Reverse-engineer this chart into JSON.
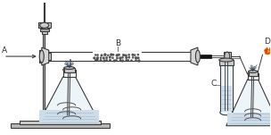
{
  "line_color": "#3a3a3a",
  "label_A": "A",
  "label_B": "B",
  "label_C": "C",
  "label_D": "D",
  "fig_width": 3.04,
  "fig_height": 1.51,
  "dpi": 100
}
